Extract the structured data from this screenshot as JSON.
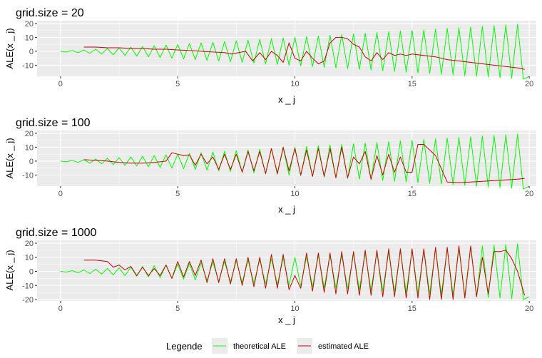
{
  "legend": {
    "title": "Legende",
    "entries": [
      {
        "label": "theoretical ALE",
        "color": "#00ff00"
      },
      {
        "label": "estimated ALE",
        "color": "#cc0000"
      }
    ]
  },
  "chart_data": [
    {
      "type": "line",
      "title": "grid.size = 20",
      "xlabel": "x _ j",
      "ylabel": "ALE(x _ j)",
      "xlim": [
        -1,
        20.3
      ],
      "ylim": [
        -18,
        22
      ],
      "xticks": [
        0,
        5,
        10,
        15,
        20
      ],
      "yticks": [
        -10,
        0,
        10,
        20
      ],
      "grid": true,
      "legend_position": "bottom",
      "theoretical": {
        "name": "theoretical ALE",
        "x": [
          0,
          0.25,
          0.5,
          0.75,
          1,
          1.25,
          1.5,
          1.75,
          2,
          2.25,
          2.5,
          2.75,
          3,
          3.25,
          3.5,
          3.75,
          4,
          4.25,
          4.5,
          4.75,
          5,
          5.25,
          5.5,
          5.75,
          6,
          6.25,
          6.5,
          6.75,
          7,
          7.25,
          7.5,
          7.75,
          8,
          8.25,
          8.5,
          8.75,
          9,
          9.25,
          9.5,
          9.75,
          10,
          10.25,
          10.5,
          10.75,
          11,
          11.25,
          11.5,
          11.75,
          12,
          12.25,
          12.5,
          12.75,
          13,
          13.25,
          13.5,
          13.75,
          14,
          14.25,
          14.5,
          14.75,
          15,
          15.25,
          15.5,
          15.75,
          16,
          16.25,
          16.5,
          16.75,
          17,
          17.25,
          17.5,
          17.75,
          18,
          18.25,
          18.5,
          18.75,
          19,
          19.25,
          19.5,
          19.75,
          20
        ],
        "y": [
          0,
          -0.5,
          0.5,
          -1,
          1,
          -1.5,
          1.5,
          -2,
          2,
          -2.5,
          2.5,
          -3,
          3,
          -3.5,
          3.5,
          -4,
          4,
          -4.5,
          4.5,
          -5,
          5,
          -5.5,
          5.5,
          -6,
          6,
          -6.5,
          6.5,
          -7,
          7,
          -7.5,
          7.5,
          -8,
          8,
          -8.5,
          8.5,
          -9,
          9,
          -9.5,
          9.5,
          -10,
          10,
          -10.5,
          10.5,
          -11,
          11,
          -11.5,
          11.5,
          -12,
          12,
          -12.5,
          12.5,
          -13,
          13,
          -13.5,
          13.5,
          -14,
          14,
          -14.5,
          14.5,
          -15,
          15,
          -15.5,
          15.5,
          -16,
          16,
          -16.5,
          16.5,
          -17,
          17,
          -17.5,
          17.5,
          -18,
          18,
          -18.5,
          18.5,
          -19,
          19,
          -19.5,
          19.5,
          -20,
          -18
        ]
      },
      "estimated": {
        "name": "estimated ALE",
        "x": [
          1,
          1.5,
          2,
          2.5,
          3,
          3.5,
          4,
          4.5,
          5,
          5.5,
          6,
          6.5,
          7,
          7.3,
          7.6,
          7.9,
          8.2,
          8.5,
          8.75,
          9,
          9.25,
          9.5,
          9.75,
          10,
          10.25,
          10.5,
          10.75,
          11,
          11.25,
          11.5,
          11.75,
          12,
          12.25,
          12.5,
          12.75,
          13,
          13.25,
          13.5,
          13.75,
          14,
          14.25,
          14.5,
          14.75,
          15,
          15.5,
          16,
          16.5,
          17,
          17.5,
          18,
          18.5,
          19,
          19.5,
          19.8
        ],
        "y": [
          3,
          3,
          2.5,
          2.5,
          2,
          2,
          1.5,
          1.5,
          1,
          0.5,
          0,
          -0.5,
          -1,
          -2,
          -1,
          0,
          -7,
          -1,
          -6,
          0,
          -3,
          -8,
          6,
          -5,
          -7,
          0,
          -5,
          -9,
          -7,
          6,
          10,
          10,
          9,
          5,
          3,
          -4,
          -7,
          -1,
          -6,
          -1,
          -3,
          -2,
          -3,
          -2,
          -3,
          -4,
          -6,
          -7,
          -8,
          -9,
          -10,
          -11,
          -12,
          -13
        ]
      }
    },
    {
      "type": "line",
      "title": "grid.size = 100",
      "xlabel": "x _ j",
      "ylabel": "ALE(x _ j)",
      "xlim": [
        -1,
        20.3
      ],
      "ylim": [
        -18,
        22
      ],
      "xticks": [
        0,
        5,
        10,
        15,
        20
      ],
      "yticks": [
        -10,
        0,
        10,
        20
      ],
      "grid": true,
      "legend_position": "bottom",
      "theoretical": {
        "name": "theoretical ALE",
        "x": [
          0,
          0.25,
          0.5,
          0.75,
          1,
          1.25,
          1.5,
          1.75,
          2,
          2.25,
          2.5,
          2.75,
          3,
          3.25,
          3.5,
          3.75,
          4,
          4.25,
          4.5,
          4.75,
          5,
          5.25,
          5.5,
          5.75,
          6,
          6.25,
          6.5,
          6.75,
          7,
          7.25,
          7.5,
          7.75,
          8,
          8.25,
          8.5,
          8.75,
          9,
          9.25,
          9.5,
          9.75,
          10,
          10.25,
          10.5,
          10.75,
          11,
          11.25,
          11.5,
          11.75,
          12,
          12.25,
          12.5,
          12.75,
          13,
          13.25,
          13.5,
          13.75,
          14,
          14.25,
          14.5,
          14.75,
          15,
          15.25,
          15.5,
          15.75,
          16,
          16.25,
          16.5,
          16.75,
          17,
          17.25,
          17.5,
          17.75,
          18,
          18.25,
          18.5,
          18.75,
          19,
          19.25,
          19.5,
          19.75,
          20
        ],
        "y": [
          0,
          -0.5,
          0.5,
          -1,
          1,
          -1.5,
          1.5,
          -2,
          2,
          -2.5,
          2.5,
          -3,
          3,
          -3.5,
          3.5,
          -4,
          4,
          -4.5,
          4.5,
          -5,
          5,
          -5.5,
          5.5,
          -6,
          6,
          -6.5,
          6.5,
          -7,
          7,
          -7.5,
          7.5,
          -8,
          8,
          -8.5,
          8.5,
          -9,
          9,
          -9.5,
          9.5,
          -10,
          10,
          -10.5,
          10.5,
          -11,
          11,
          -11.5,
          11.5,
          -12,
          12,
          -12.5,
          12.5,
          -13,
          13,
          -13.5,
          13.5,
          -14,
          14,
          -14.5,
          14.5,
          -15,
          15,
          -15.5,
          15.5,
          -16,
          16,
          -16.5,
          16.5,
          -17,
          17,
          -17.5,
          17.5,
          -18,
          18,
          -18.5,
          18.5,
          -19,
          19,
          -19.5,
          19.5,
          -20,
          -18
        ]
      },
      "estimated": {
        "name": "estimated ALE",
        "x": [
          1,
          1.5,
          2,
          2.5,
          3,
          3.5,
          4,
          4.5,
          4.75,
          5,
          5.25,
          5.5,
          5.75,
          6,
          6.25,
          6.5,
          6.75,
          7,
          7.25,
          7.5,
          7.75,
          8,
          8.25,
          8.5,
          8.75,
          9,
          9.25,
          9.5,
          9.75,
          10,
          10.25,
          10.5,
          10.75,
          11,
          11.25,
          11.5,
          11.75,
          12,
          12.25,
          12.5,
          12.75,
          13,
          13.25,
          13.5,
          13.75,
          14,
          14.25,
          14.5,
          14.75,
          15,
          15.25,
          15.5,
          16,
          16.5,
          17,
          17.5,
          18,
          18.5,
          19,
          19.5,
          19.8
        ],
        "y": [
          1,
          0.5,
          0,
          -1,
          -1.5,
          -1.5,
          -1,
          0,
          6,
          5,
          4,
          4.5,
          -3,
          5,
          -2,
          3,
          -6,
          5,
          -6,
          5,
          -8,
          7,
          -7,
          7,
          -9,
          9,
          -9,
          10,
          -7,
          9,
          -10,
          8,
          -11,
          9,
          -11,
          9,
          -12,
          10,
          -12,
          3,
          -2,
          7,
          -13,
          4,
          -10,
          5,
          -8,
          3,
          -8,
          -8,
          12,
          12,
          4,
          -15,
          -15.5,
          -15,
          -14.5,
          -14,
          -13.5,
          -13,
          -12.5
        ]
      }
    },
    {
      "type": "line",
      "title": "grid.size = 1000",
      "xlabel": "x _ j",
      "ylabel": "ALE(x _ j)",
      "xlim": [
        -1,
        20.3
      ],
      "ylim": [
        -21,
        22
      ],
      "xticks": [
        0,
        5,
        10,
        15,
        20
      ],
      "yticks": [
        -20,
        -10,
        0,
        10,
        20
      ],
      "grid": true,
      "legend_position": "bottom",
      "theoretical": {
        "name": "theoretical ALE",
        "x": [
          0,
          0.25,
          0.5,
          0.75,
          1,
          1.25,
          1.5,
          1.75,
          2,
          2.25,
          2.5,
          2.75,
          3,
          3.25,
          3.5,
          3.75,
          4,
          4.25,
          4.5,
          4.75,
          5,
          5.25,
          5.5,
          5.75,
          6,
          6.25,
          6.5,
          6.75,
          7,
          7.25,
          7.5,
          7.75,
          8,
          8.25,
          8.5,
          8.75,
          9,
          9.25,
          9.5,
          9.75,
          10,
          10.25,
          10.5,
          10.75,
          11,
          11.25,
          11.5,
          11.75,
          12,
          12.25,
          12.5,
          12.75,
          13,
          13.25,
          13.5,
          13.75,
          14,
          14.25,
          14.5,
          14.75,
          15,
          15.25,
          15.5,
          15.75,
          16,
          16.25,
          16.5,
          16.75,
          17,
          17.25,
          17.5,
          17.75,
          18,
          18.25,
          18.5,
          18.75,
          19,
          19.25,
          19.5,
          19.75,
          20
        ],
        "y": [
          0,
          -0.5,
          0.5,
          -1,
          1,
          -1.5,
          1.5,
          -2,
          2,
          -2.5,
          2.5,
          -3,
          3,
          -3.5,
          3.5,
          -4,
          4,
          -4.5,
          4.5,
          -5,
          5,
          -5.5,
          5.5,
          -6,
          6,
          -6.5,
          6.5,
          -7,
          7,
          -7.5,
          7.5,
          -8,
          8,
          -8.5,
          8.5,
          -9,
          9,
          -9.5,
          9.5,
          -10,
          10,
          -10.5,
          10.5,
          -11,
          11,
          -11.5,
          11.5,
          -12,
          12,
          -12.5,
          12.5,
          -13,
          13,
          -13.5,
          13.5,
          -14,
          14,
          -14.5,
          14.5,
          -15,
          15,
          -15.5,
          15.5,
          -16,
          16,
          -16.5,
          16.5,
          -17,
          17,
          -17.5,
          17.5,
          -18,
          18,
          -18.5,
          18.5,
          -19,
          19,
          -19.5,
          19.5,
          -20,
          -18
        ]
      },
      "estimated": {
        "name": "estimated ALE",
        "x": [
          1,
          1.5,
          2,
          2.25,
          2.5,
          2.75,
          3,
          3.25,
          3.5,
          3.75,
          4,
          4.25,
          4.5,
          4.75,
          5,
          5.25,
          5.5,
          5.75,
          6,
          6.25,
          6.5,
          6.75,
          7,
          7.25,
          7.5,
          7.75,
          8,
          8.25,
          8.5,
          8.75,
          9,
          9.25,
          9.5,
          9.75,
          10,
          10.25,
          10.5,
          10.75,
          11,
          11.25,
          11.5,
          11.75,
          12,
          12.25,
          12.5,
          12.75,
          13,
          13.25,
          13.5,
          13.75,
          14,
          14.25,
          14.5,
          14.75,
          15,
          15.25,
          15.5,
          15.75,
          16,
          16.25,
          16.5,
          16.75,
          17,
          17.25,
          17.5,
          17.75,
          18,
          18.25,
          18.5,
          18.75,
          19,
          19.25,
          19.5,
          19.8
        ],
        "y": [
          8,
          8,
          7,
          3,
          4.5,
          1,
          3.5,
          -3,
          3,
          -3,
          2,
          -3,
          4.5,
          -5,
          7,
          -4,
          7,
          -3,
          8,
          -8,
          9,
          -8,
          9,
          -9,
          9,
          -10,
          10,
          -11,
          10,
          -12,
          12,
          -12,
          12,
          -13,
          -3,
          -12,
          13,
          -14,
          13,
          -15,
          13,
          -16,
          14,
          -16,
          14,
          -17,
          15,
          -17,
          15,
          -18,
          16,
          -18,
          16,
          -19,
          16,
          -19,
          16,
          -20,
          17,
          -20,
          17,
          -20,
          18,
          -19,
          18,
          -18,
          10,
          -16,
          14,
          14,
          15,
          9,
          0,
          -17
        ]
      }
    }
  ]
}
